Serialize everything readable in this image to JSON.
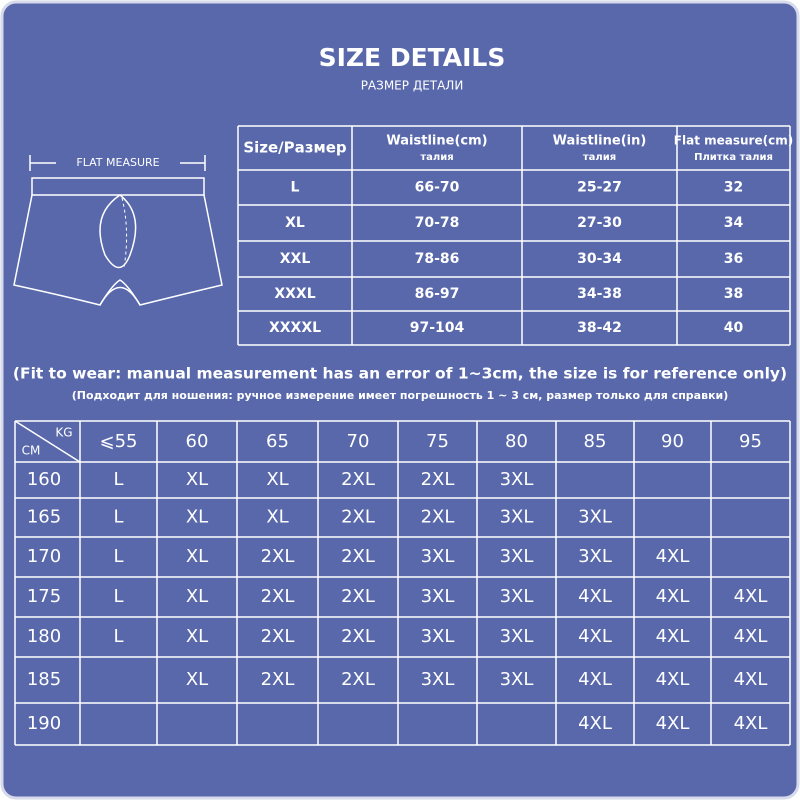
{
  "header": {
    "title": "SIZE DETAILS",
    "subtitle": "РАЗМЕР ДЕТАЛИ"
  },
  "flat_measure_label": "FLAT MEASURE",
  "size_table": {
    "header": [
      {
        "main": "Size/Размер"
      },
      {
        "main": "Waistline(cm)",
        "sub": "талия"
      },
      {
        "main": "Waistline(in)",
        "sub": "талия"
      },
      {
        "main": "Flat measure(cm)",
        "sub": "Плитка талия"
      }
    ],
    "rows": [
      [
        "L",
        "66-70",
        "25-27",
        "32"
      ],
      [
        "XL",
        "70-78",
        "27-30",
        "34"
      ],
      [
        "XXL",
        "78-86",
        "30-34",
        "36"
      ],
      [
        "XXXL",
        "86-97",
        "34-38",
        "38"
      ],
      [
        "XXXXL",
        "97-104",
        "38-42",
        "40"
      ]
    ]
  },
  "note": {
    "en": "(Fit to wear: manual measurement has an error of 1~3cm, the size is for reference only)",
    "ru": "(Подходит для ношения: ручное измерение имеет погрешность 1 ~ 3 см, размер только для справки)"
  },
  "fit_table": {
    "corner_top": "KG",
    "corner_bottom": "CM",
    "columns": [
      "⩽55",
      "60",
      "65",
      "70",
      "75",
      "80",
      "85",
      "90",
      "95"
    ],
    "rows": [
      {
        "height": "160",
        "sizes": [
          "L",
          "XL",
          "XL",
          "2XL",
          "2XL",
          "3XL",
          null,
          null,
          null
        ]
      },
      {
        "height": "165",
        "sizes": [
          "L",
          "XL",
          "XL",
          "2XL",
          "2XL",
          "3XL",
          "3XL",
          null,
          null
        ]
      },
      {
        "height": "170",
        "sizes": [
          "L",
          "XL",
          "2XL",
          "2XL",
          "3XL",
          "3XL",
          "3XL",
          "4XL",
          null
        ]
      },
      {
        "height": "175",
        "sizes": [
          "L",
          "XL",
          "2XL",
          "2XL",
          "3XL",
          "3XL",
          "4XL",
          "4XL",
          "4XL"
        ]
      },
      {
        "height": "180",
        "sizes": [
          "L",
          "XL",
          "2XL",
          "2XL",
          "3XL",
          "3XL",
          "4XL",
          "4XL",
          "4XL"
        ]
      },
      {
        "height": "185",
        "sizes": [
          null,
          "XL",
          "2XL",
          "2XL",
          "3XL",
          "3XL",
          "4XL",
          "4XL",
          "4XL"
        ]
      },
      {
        "height": "190",
        "sizes": [
          null,
          null,
          null,
          null,
          null,
          null,
          "4XL",
          "4XL",
          "4XL"
        ]
      }
    ]
  }
}
